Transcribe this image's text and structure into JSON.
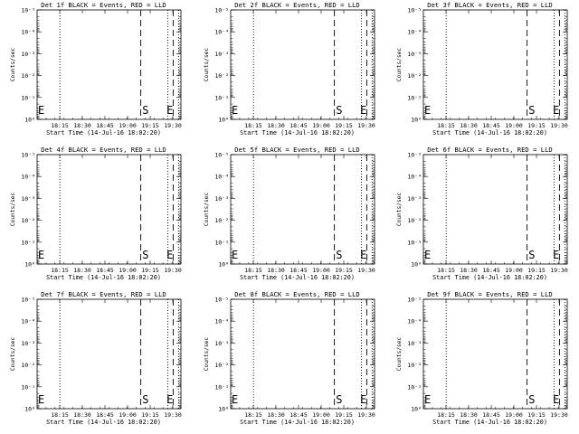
{
  "chart_data": [
    {
      "type": "line",
      "title": "Det 1f BLACK = Events, RED = LLD",
      "xlabel": "Start Time (14-Jul-16 18:02:20)",
      "ylabel": "Counts/sec",
      "xtick_labels": [
        "18:15",
        "18:30",
        "18:45",
        "19:00",
        "19:15",
        "19:30"
      ],
      "ytick_labels": [
        "10⁰",
        "10⁻¹",
        "10⁻²",
        "10⁻³",
        "10⁻⁴",
        "10⁻⁵"
      ],
      "yscale": "log",
      "ylim": [
        1,
        1e-05
      ],
      "xlim_minutes_after_start": [
        0,
        80
      ],
      "dotted_lines_minutes": [
        12.67,
        72.67,
        78.67
      ],
      "dashed_lines_minutes": [
        57.67,
        75.67
      ],
      "annotations": [
        {
          "text": "E",
          "x_minutes": 0.5
        },
        {
          "text": "S",
          "x_minutes": 58.5
        },
        {
          "text": "E",
          "x_minutes": 72
        }
      ],
      "series": []
    },
    {
      "type": "line",
      "title": "Det 2f BLACK = Events, RED = LLD",
      "xlabel": "Start Time (14-Jul-16 18:02:20)",
      "ylabel": "Counts/sec",
      "xtick_labels": [
        "18:15",
        "18:30",
        "18:45",
        "19:00",
        "19:15",
        "19:30"
      ],
      "ytick_labels": [
        "10⁰",
        "10⁻¹",
        "10⁻²",
        "10⁻³",
        "10⁻⁴",
        "10⁻⁵"
      ],
      "yscale": "log",
      "ylim": [
        1,
        1e-05
      ],
      "xlim_minutes_after_start": [
        0,
        80
      ],
      "dotted_lines_minutes": [
        12.67,
        72.67,
        78.67
      ],
      "dashed_lines_minutes": [
        57.67,
        75.67
      ],
      "annotations": [
        {
          "text": "E",
          "x_minutes": 0.5
        },
        {
          "text": "S",
          "x_minutes": 58.5
        },
        {
          "text": "E",
          "x_minutes": 72
        }
      ],
      "series": []
    },
    {
      "type": "line",
      "title": "Det 3f BLACK = Events, RED = LLD",
      "xlabel": "Start Time (14-Jul-16 18:02:20)",
      "ylabel": "Counts/sec",
      "xtick_labels": [
        "18:15",
        "18:30",
        "18:45",
        "19:00",
        "19:15",
        "19:30"
      ],
      "ytick_labels": [
        "10⁰",
        "10⁻¹",
        "10⁻²",
        "10⁻³",
        "10⁻⁴",
        "10⁻⁵"
      ],
      "yscale": "log",
      "ylim": [
        1,
        1e-05
      ],
      "xlim_minutes_after_start": [
        0,
        80
      ],
      "dotted_lines_minutes": [
        12.67,
        72.67,
        78.67
      ],
      "dashed_lines_minutes": [
        57.67,
        75.67
      ],
      "annotations": [
        {
          "text": "E",
          "x_minutes": 0.5
        },
        {
          "text": "S",
          "x_minutes": 58.5
        },
        {
          "text": "E",
          "x_minutes": 72
        }
      ],
      "series": []
    },
    {
      "type": "line",
      "title": "Det 4f BLACK = Events, RED = LLD",
      "xlabel": "Start Time (14-Jul-16 18:02:20)",
      "ylabel": "Counts/sec",
      "xtick_labels": [
        "18:15",
        "18:30",
        "18:45",
        "19:00",
        "19:15",
        "19:30"
      ],
      "ytick_labels": [
        "10⁰",
        "10⁻¹",
        "10⁻²",
        "10⁻³",
        "10⁻⁴",
        "10⁻⁵"
      ],
      "yscale": "log",
      "ylim": [
        1,
        1e-05
      ],
      "xlim_minutes_after_start": [
        0,
        80
      ],
      "dotted_lines_minutes": [
        12.67,
        72.67,
        78.67
      ],
      "dashed_lines_minutes": [
        57.67,
        75.67
      ],
      "annotations": [
        {
          "text": "E",
          "x_minutes": 0.5
        },
        {
          "text": "S",
          "x_minutes": 58.5
        },
        {
          "text": "E",
          "x_minutes": 72
        }
      ],
      "series": []
    },
    {
      "type": "line",
      "title": "Det 5f BLACK = Events, RED = LLD",
      "xlabel": "Start Time (14-Jul-16 18:02:20)",
      "ylabel": "Counts/sec",
      "xtick_labels": [
        "18:15",
        "18:30",
        "18:45",
        "19:00",
        "19:15",
        "19:30"
      ],
      "ytick_labels": [
        "10⁰",
        "10⁻¹",
        "10⁻²",
        "10⁻³",
        "10⁻⁴",
        "10⁻⁵"
      ],
      "yscale": "log",
      "ylim": [
        1,
        1e-05
      ],
      "xlim_minutes_after_start": [
        0,
        80
      ],
      "dotted_lines_minutes": [
        12.67,
        72.67,
        78.67
      ],
      "dashed_lines_minutes": [
        57.67,
        75.67
      ],
      "annotations": [
        {
          "text": "E",
          "x_minutes": 0.5
        },
        {
          "text": "S",
          "x_minutes": 58.5
        },
        {
          "text": "E",
          "x_minutes": 72
        }
      ],
      "series": []
    },
    {
      "type": "line",
      "title": "Det 6f BLACK = Events, RED = LLD",
      "xlabel": "Start Time (14-Jul-16 18:02:20)",
      "ylabel": "Counts/sec",
      "xtick_labels": [
        "18:15",
        "18:30",
        "18:45",
        "19:00",
        "19:15",
        "19:30"
      ],
      "ytick_labels": [
        "10⁰",
        "10⁻¹",
        "10⁻²",
        "10⁻³",
        "10⁻⁴",
        "10⁻⁵"
      ],
      "yscale": "log",
      "ylim": [
        1,
        1e-05
      ],
      "xlim_minutes_after_start": [
        0,
        80
      ],
      "dotted_lines_minutes": [
        12.67,
        72.67,
        78.67
      ],
      "dashed_lines_minutes": [
        57.67,
        75.67
      ],
      "annotations": [
        {
          "text": "E",
          "x_minutes": 0.5
        },
        {
          "text": "S",
          "x_minutes": 58.5
        },
        {
          "text": "E",
          "x_minutes": 72
        }
      ],
      "series": []
    },
    {
      "type": "line",
      "title": "Det 7f BLACK = Events, RED = LLD",
      "xlabel": "Start Time (14-Jul-16 18:02:20)",
      "ylabel": "Counts/sec",
      "xtick_labels": [
        "18:15",
        "18:30",
        "18:45",
        "19:00",
        "19:15",
        "19:30"
      ],
      "ytick_labels": [
        "10⁰",
        "10⁻¹",
        "10⁻²",
        "10⁻³",
        "10⁻⁴",
        "10⁻⁵"
      ],
      "yscale": "log",
      "ylim": [
        1,
        1e-05
      ],
      "xlim_minutes_after_start": [
        0,
        80
      ],
      "dotted_lines_minutes": [
        12.67,
        72.67,
        78.67
      ],
      "dashed_lines_minutes": [
        57.67,
        75.67
      ],
      "annotations": [
        {
          "text": "E",
          "x_minutes": 0.5
        },
        {
          "text": "S",
          "x_minutes": 58.5
        },
        {
          "text": "E",
          "x_minutes": 72
        }
      ],
      "series": []
    },
    {
      "type": "line",
      "title": "Det 8f BLACK = Events, RED = LLD",
      "xlabel": "Start Time (14-Jul-16 18:02:20)",
      "ylabel": "Counts/sec",
      "xtick_labels": [
        "18:15",
        "18:30",
        "18:45",
        "19:00",
        "19:15",
        "19:30"
      ],
      "ytick_labels": [
        "10⁰",
        "10⁻¹",
        "10⁻²",
        "10⁻³",
        "10⁻⁴",
        "10⁻⁵"
      ],
      "yscale": "log",
      "ylim": [
        1,
        1e-05
      ],
      "xlim_minutes_after_start": [
        0,
        80
      ],
      "dotted_lines_minutes": [
        12.67,
        72.67,
        78.67
      ],
      "dashed_lines_minutes": [
        57.67,
        75.67
      ],
      "annotations": [
        {
          "text": "E",
          "x_minutes": 0.5
        },
        {
          "text": "S",
          "x_minutes": 58.5
        },
        {
          "text": "E",
          "x_minutes": 72
        }
      ],
      "series": []
    },
    {
      "type": "line",
      "title": "Det 9f BLACK = Events, RED = LLD",
      "xlabel": "Start Time (14-Jul-16 18:02:20)",
      "ylabel": "Counts/sec",
      "xtick_labels": [
        "18:15",
        "18:30",
        "18:45",
        "19:00",
        "19:15",
        "19:30"
      ],
      "ytick_labels": [
        "10⁰",
        "10⁻¹",
        "10⁻²",
        "10⁻³",
        "10⁻⁴",
        "10⁻⁵"
      ],
      "yscale": "log",
      "ylim": [
        1,
        1e-05
      ],
      "xlim_minutes_after_start": [
        0,
        80
      ],
      "dotted_lines_minutes": [
        12.67,
        72.67,
        78.67
      ],
      "dashed_lines_minutes": [
        57.67,
        75.67
      ],
      "annotations": [
        {
          "text": "E",
          "x_minutes": 0.5
        },
        {
          "text": "S",
          "x_minutes": 58.5
        },
        {
          "text": "E",
          "x_minutes": 72
        }
      ],
      "series": []
    }
  ]
}
